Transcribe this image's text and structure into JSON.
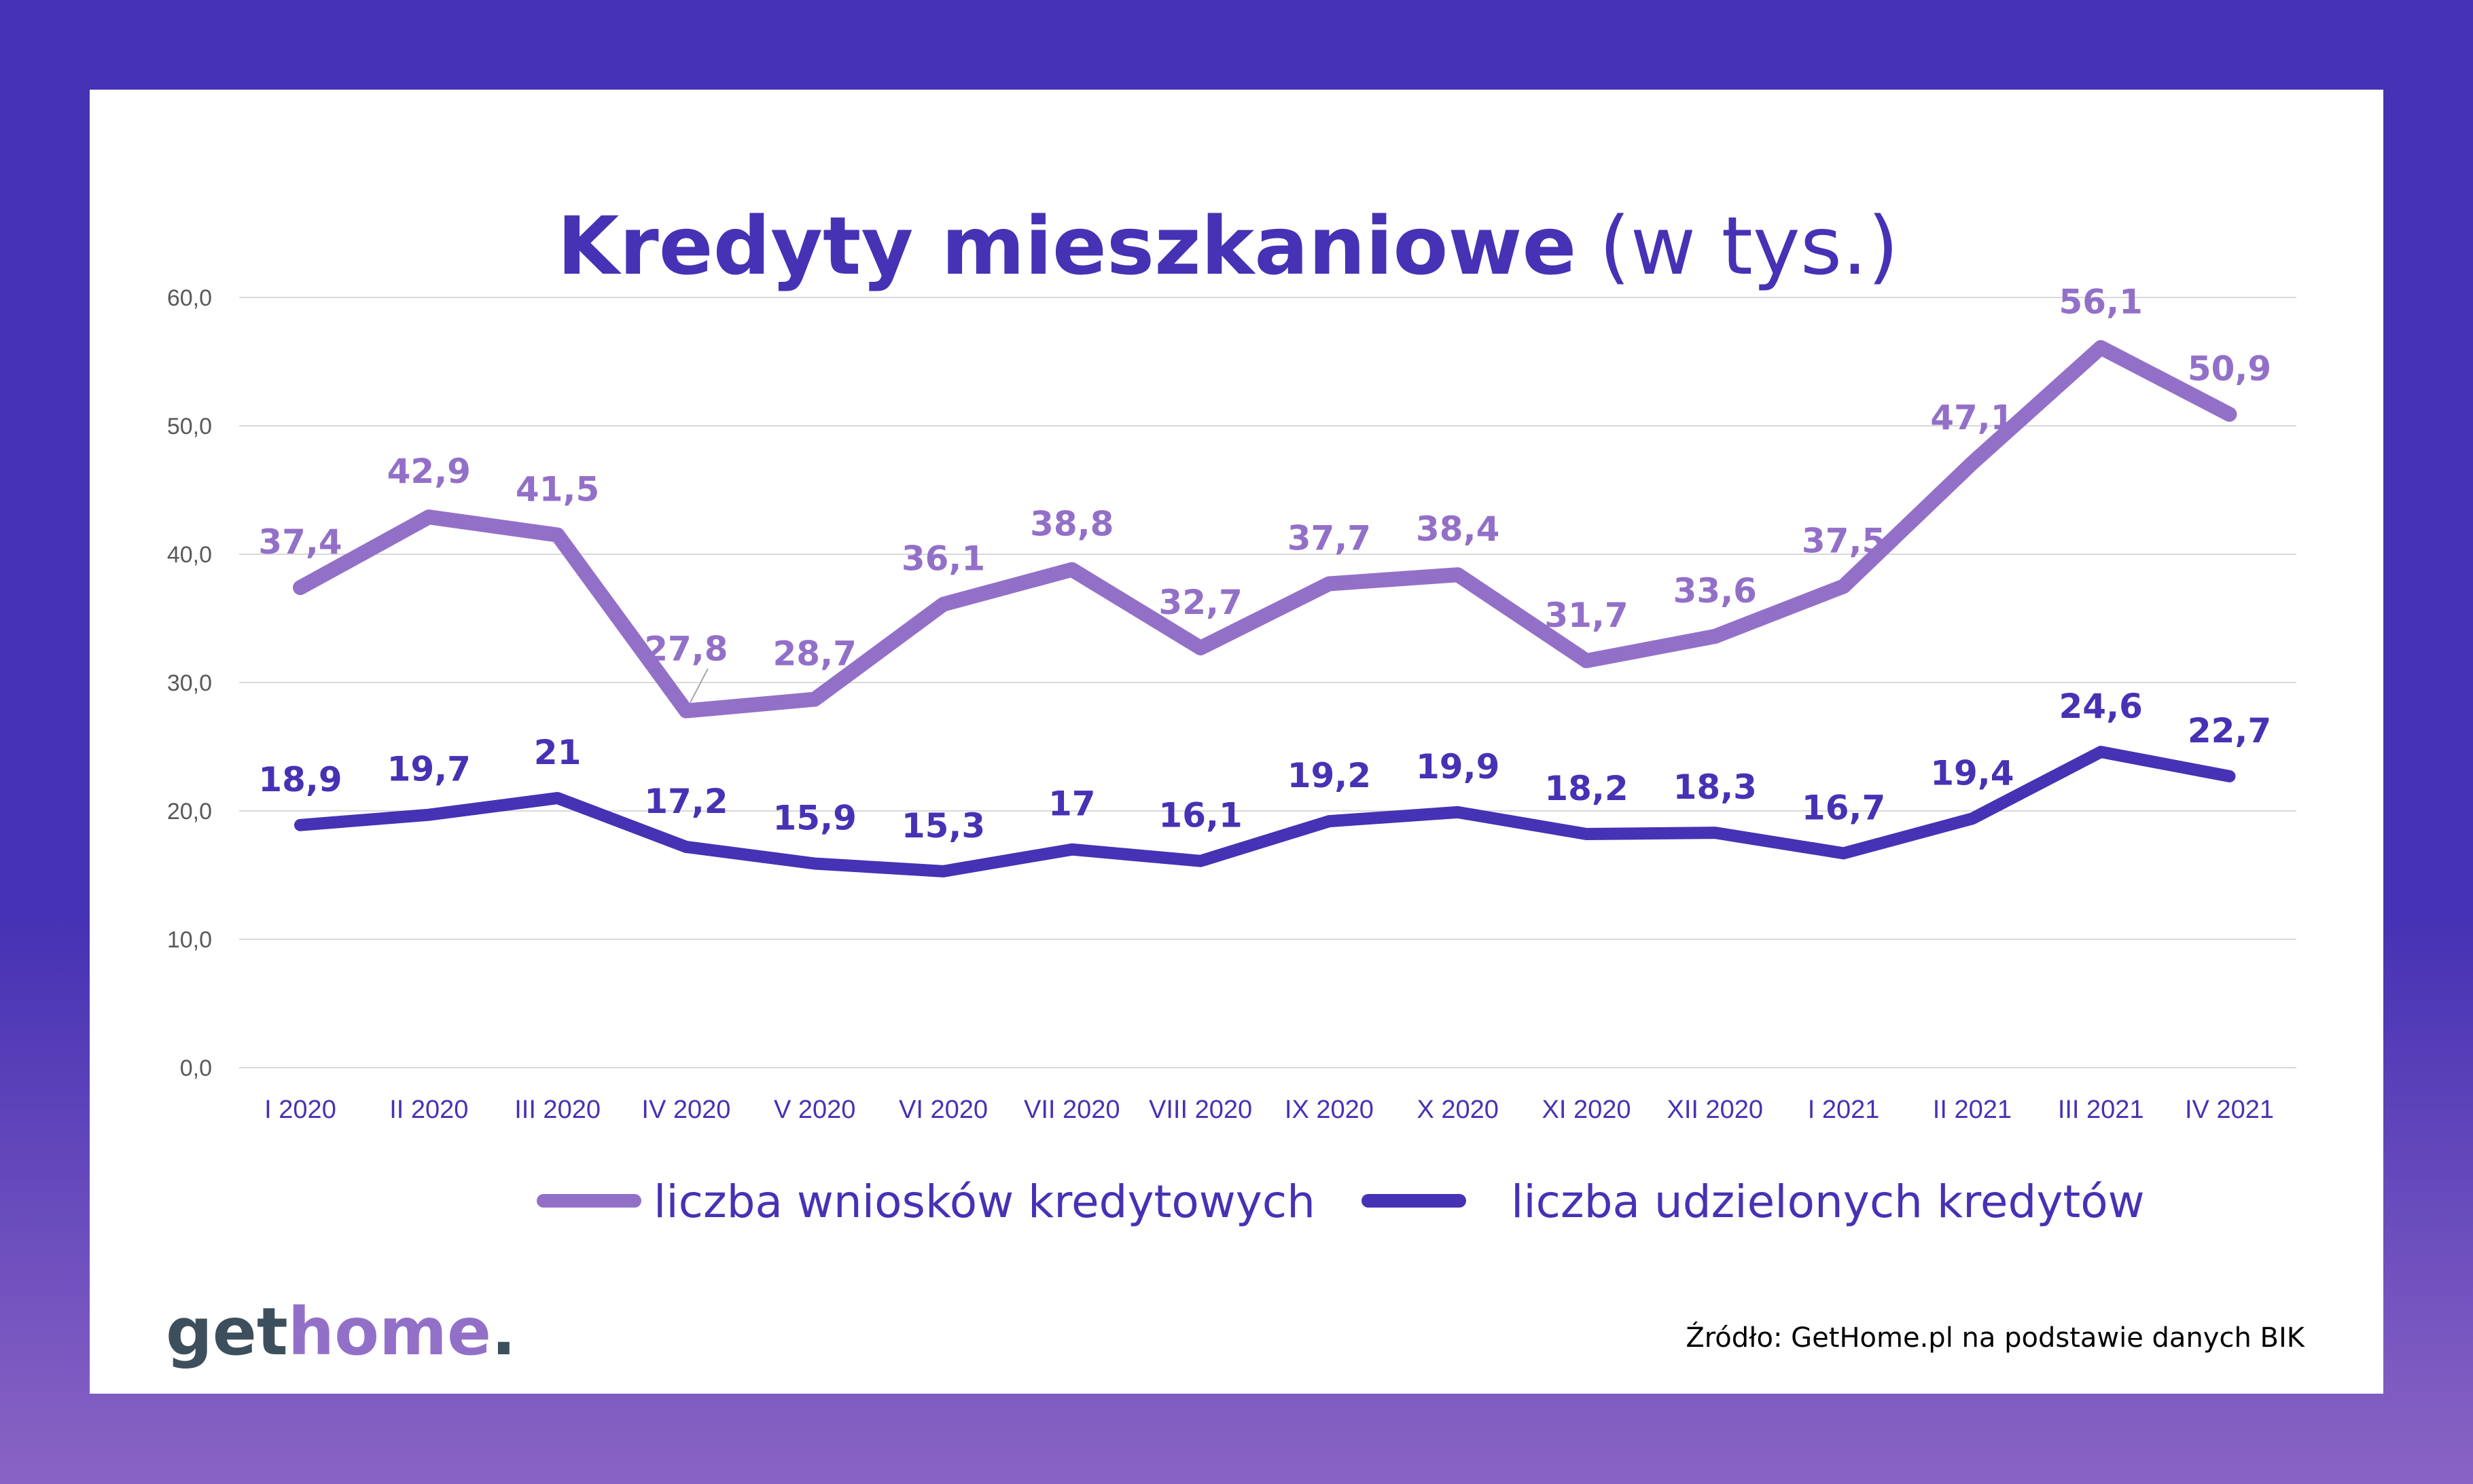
{
  "chart_data": {
    "type": "line",
    "title": "Kredyty mieszkaniowe",
    "title_suffix": "(w tys.)",
    "categories": [
      "I 2020",
      "II 2020",
      "III 2020",
      "IV 2020",
      "V 2020",
      "VI 2020",
      "VII 2020",
      "VIII 2020",
      "IX 2020",
      "X 2020",
      "XI 2020",
      "XII 2020",
      "I 2021",
      "II 2021",
      "III 2021",
      "IV 2021"
    ],
    "series": [
      {
        "name": "liczba wniosków kredytowych",
        "color": "#9370c8",
        "values": [
          37.4,
          42.9,
          41.5,
          27.8,
          28.7,
          36.1,
          38.8,
          32.7,
          37.7,
          38.4,
          31.7,
          33.6,
          37.5,
          47.1,
          56.1,
          50.9
        ],
        "labels": [
          "37,4",
          "42,9",
          "41,5",
          "27,8",
          "28,7",
          "36,1",
          "38,8",
          "32,7",
          "37,7",
          "38,4",
          "31,7",
          "33,6",
          "37,5",
          "47,1",
          "56,1",
          "50,9"
        ]
      },
      {
        "name": "liczba udzielonych kredytów",
        "color": "#4632b4",
        "values": [
          18.9,
          19.7,
          21,
          17.2,
          15.9,
          15.3,
          17,
          16.1,
          19.2,
          19.9,
          18.2,
          18.3,
          16.7,
          19.4,
          24.6,
          22.7
        ],
        "labels": [
          "18,9",
          "19,7",
          "21",
          "17,2",
          "15,9",
          "15,3",
          "17",
          "16,1",
          "19,2",
          "19,9",
          "18,2",
          "18,3",
          "16,7",
          "19,4",
          "24,6",
          "22,7"
        ]
      }
    ],
    "yticks": [
      "0,0",
      "10,0",
      "20,0",
      "30,0",
      "40,0",
      "50,0",
      "60,0"
    ],
    "ylim": [
      0,
      60
    ],
    "grid": true,
    "legend_position": "bottom"
  },
  "logo": {
    "part1": "get",
    "part2": "home",
    "part3": ".",
    "color_dark": "#3d4f5c",
    "color_accent": "#9370c8"
  },
  "source": "Źródło: GetHome.pl na podstawie danych BIK"
}
